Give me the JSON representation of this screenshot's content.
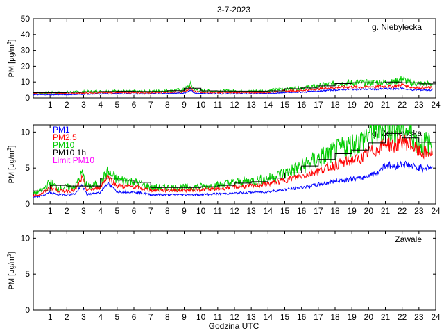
{
  "title": "3-7-2023",
  "xlabel": "Godzina UTC",
  "ylabel_base": "PM [μg/m",
  "ylabel_sup": "3",
  "ylabel_close": "]",
  "x_ticks": [
    "1",
    "2",
    "3",
    "4",
    "5",
    "6",
    "7",
    "8",
    "9",
    "10",
    "11",
    "12",
    "13",
    "14",
    "15",
    "16",
    "17",
    "18",
    "19",
    "20",
    "21",
    "22",
    "23",
    "24"
  ],
  "legend": [
    {
      "label": "PM1",
      "color": "#0000ff"
    },
    {
      "label": "PM2.5",
      "color": "#ff0000"
    },
    {
      "label": "PM10",
      "color": "#00cc00"
    },
    {
      "label": "PM10 1h",
      "color": "#000000"
    },
    {
      "label": "Limit PM10",
      "color": "#ff00ff"
    }
  ],
  "chart_data": [
    {
      "type": "line",
      "station": "g. Niebylecka",
      "xlim": [
        0,
        24
      ],
      "ylim": [
        0,
        50
      ],
      "yticks": [
        "0",
        "10",
        "20",
        "30",
        "40",
        "50"
      ],
      "limit_pm10": 50,
      "series": [
        {
          "name": "PM1",
          "x": [
            0,
            1,
            2,
            3,
            4,
            5,
            6,
            7,
            8,
            9,
            9.4,
            9.6,
            10,
            11,
            12,
            13,
            14,
            15,
            16,
            17,
            18,
            19,
            20,
            21,
            21.5,
            22,
            22.5,
            23,
            23.8
          ],
          "values": [
            2,
            2,
            2,
            2.3,
            2.5,
            2.6,
            2.5,
            2.5,
            2.8,
            3,
            5,
            3,
            2.7,
            2.6,
            2.6,
            2.6,
            2.7,
            3.3,
            3.6,
            4.3,
            5,
            5.3,
            5.4,
            5.6,
            5.6,
            6,
            5,
            5,
            4.8
          ]
        },
        {
          "name": "PM2.5",
          "x": [
            0,
            1,
            2,
            3,
            4,
            5,
            6,
            7,
            8,
            9,
            9.4,
            9.6,
            10,
            11,
            12,
            13,
            14,
            15,
            16,
            17,
            18,
            19,
            20,
            21,
            21.5,
            22,
            22.5,
            23,
            23.8
          ],
          "values": [
            2.6,
            2.6,
            2.7,
            3,
            3.2,
            3.3,
            3.2,
            3.2,
            3.5,
            3.8,
            6.5,
            4,
            3.4,
            3.3,
            3.3,
            3.3,
            3.4,
            4.3,
            4.6,
            5.6,
            6.5,
            6.8,
            6.9,
            7.2,
            7.1,
            8.5,
            6.7,
            6.5,
            6.3
          ]
        },
        {
          "name": "PM10",
          "x": [
            0,
            1,
            2,
            3,
            4,
            5,
            6,
            7,
            8,
            9,
            9.4,
            9.6,
            10,
            11,
            12,
            13,
            14,
            15,
            16,
            17,
            18,
            19,
            20,
            21,
            21.5,
            22,
            22.5,
            23,
            23.8
          ],
          "values": [
            3.3,
            3.3,
            3.5,
            3.8,
            4,
            4.2,
            4,
            4,
            4.5,
            5,
            8.5,
            5.2,
            4.4,
            4.3,
            4.2,
            4.2,
            4.4,
            5.7,
            6.2,
            7.5,
            9,
            9.5,
            9.5,
            10,
            9.8,
            12,
            9.3,
            9,
            8.7
          ]
        },
        {
          "name": "PM10 1h",
          "x": [
            0,
            1,
            2,
            3,
            4,
            5,
            6,
            7,
            8,
            9,
            10,
            11,
            12,
            13,
            14,
            15,
            16,
            17,
            18,
            19,
            20,
            21,
            22,
            23
          ],
          "values": [
            3.3,
            3.3,
            3.5,
            3.8,
            4,
            4.2,
            4,
            4,
            4.5,
            6,
            4.4,
            4.3,
            4.2,
            4.2,
            4.4,
            5.7,
            6.2,
            7.5,
            9,
            9.5,
            9.5,
            10,
            9.5,
            8.8
          ]
        }
      ]
    },
    {
      "type": "line",
      "station": "g. Żarnowska",
      "xlim": [
        0,
        24
      ],
      "ylim": [
        0,
        11
      ],
      "yticks": [
        "0",
        "5",
        "10"
      ],
      "series": [
        {
          "name": "PM1",
          "x": [
            0,
            0.5,
            1,
            1.5,
            2,
            2.5,
            2.9,
            3.2,
            4,
            4.4,
            5,
            6,
            7,
            8,
            9,
            10,
            11,
            12,
            13,
            14,
            15,
            16,
            17,
            18,
            19,
            19.5,
            20,
            20.5,
            21,
            21.5,
            22,
            22.5,
            23,
            23.8
          ],
          "values": [
            0.9,
            1.1,
            1.6,
            1.3,
            1.3,
            1.4,
            2.6,
            1.3,
            1.6,
            2.9,
            1.7,
            1.7,
            1.3,
            1.3,
            1.3,
            1.3,
            1.4,
            1.5,
            1.6,
            1.7,
            2,
            2.3,
            2.7,
            3.2,
            3.5,
            3.5,
            4,
            4.3,
            5.5,
            5.2,
            5.6,
            5.3,
            5,
            5.1
          ]
        },
        {
          "name": "PM2.5",
          "x": [
            0,
            0.5,
            1,
            1.5,
            2,
            2.5,
            2.9,
            3.2,
            4,
            4.4,
            5,
            6,
            7,
            8,
            9,
            10,
            11,
            12,
            13,
            14,
            15,
            16,
            17,
            18,
            19,
            19.5,
            20,
            20.5,
            21,
            21.5,
            22,
            22.5,
            23,
            23.8
          ],
          "values": [
            1.1,
            1.4,
            2.3,
            1.8,
            1.8,
            1.9,
            3.6,
            1.9,
            2.3,
            3.9,
            2.5,
            2.4,
            1.9,
            1.9,
            1.9,
            2,
            2.1,
            2.4,
            2.5,
            2.8,
            3.3,
            3.9,
            4.6,
            5.4,
            6.1,
            6.2,
            7.2,
            7.5,
            8.5,
            8,
            8.8,
            8.3,
            7.2,
            7
          ]
        },
        {
          "name": "PM10",
          "x": [
            0,
            0.5,
            1,
            1.5,
            2,
            2.5,
            2.9,
            3.2,
            4,
            4.4,
            5,
            6,
            7,
            8,
            9,
            10,
            11,
            12,
            13,
            14,
            15,
            16,
            17,
            18,
            19,
            19.5,
            20,
            20.5,
            21,
            21.5,
            22,
            22.5,
            23,
            23.8
          ],
          "values": [
            1.4,
            1.9,
            3,
            2.2,
            2.3,
            2.4,
            4.3,
            2.4,
            2.8,
            4.4,
            3.4,
            3.1,
            2.3,
            2.3,
            2.3,
            2.4,
            2.6,
            3,
            3.2,
            3.5,
            4.3,
            5.2,
            6.3,
            7.3,
            8.3,
            8.6,
            9.8,
            10,
            11,
            10.3,
            10.5,
            10,
            8.5,
            8.3
          ]
        },
        {
          "name": "PM10 1h",
          "x": [
            0,
            1,
            2,
            3,
            4,
            5,
            6,
            7,
            8,
            9,
            10,
            11,
            12,
            13,
            14,
            15,
            16,
            17,
            18,
            19,
            20,
            21,
            22,
            23
          ],
          "values": [
            1.8,
            2.6,
            2.5,
            2.5,
            3.6,
            3.3,
            3,
            2.3,
            2.3,
            2.3,
            2.4,
            2.6,
            2.9,
            3.1,
            3.6,
            4.3,
            5.3,
            6.2,
            7,
            7.5,
            8.5,
            9.8,
            9.2,
            8.6
          ]
        }
      ]
    },
    {
      "type": "line",
      "station": "Zawale",
      "xlim": [
        0,
        24
      ],
      "ylim": [
        0,
        11
      ],
      "yticks": [
        "0",
        "5",
        "10"
      ],
      "series": []
    }
  ]
}
